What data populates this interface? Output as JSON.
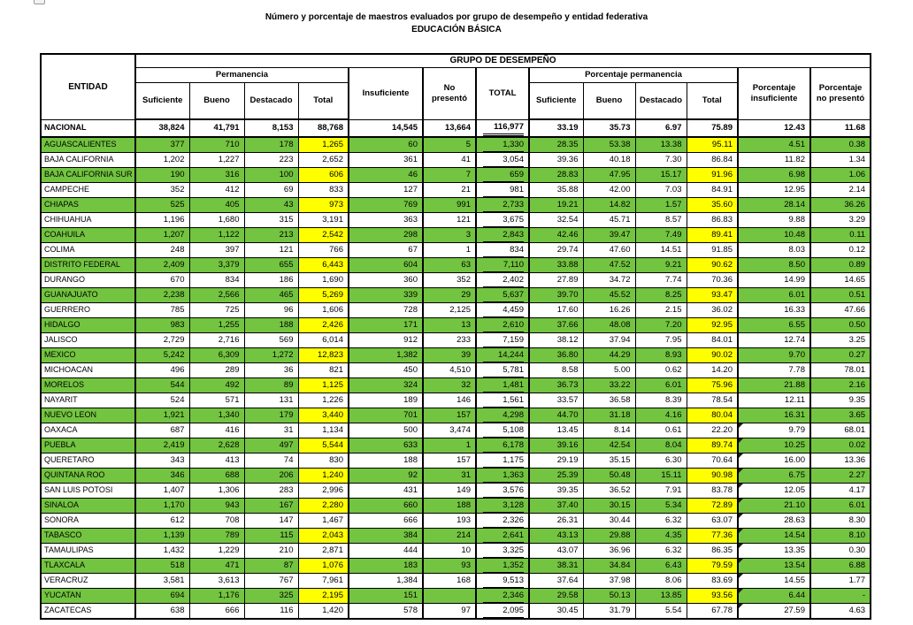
{
  "page": {
    "title": "Número y porcentaje de maestros evaluados por grupo de desempeño y entidad federativa",
    "subtitle": "EDUCACIÓN BÁSICA"
  },
  "colors": {
    "row_green": "#73C440",
    "cell_yellow": "#FFFF00"
  },
  "table": {
    "header": {
      "entidad": "ENTIDAD",
      "grupo_desempeno": "GRUPO DE DESEMPEÑO",
      "permanencia": "Permanencia",
      "porcentaje_permanencia": "Porcentaje permanencia",
      "suficiente": "Suficiente",
      "bueno": "Bueno",
      "destacado": "Destacado",
      "total": "Total",
      "insuficiente": "Insuficiente",
      "no_presento": "No presentó",
      "total_abs": "TOTAL",
      "pct_suficiente": "Suficiente",
      "pct_bueno": "Bueno",
      "pct_destacado": "Destacado",
      "pct_total": "Total",
      "porcentaje_insuficiente": "Porcentaje insuficiente",
      "porcentaje_no_presento": "Porcentaje no presentó"
    },
    "rows": [
      {
        "entidad": "NACIONAL",
        "green": false,
        "bold": true,
        "marker": false,
        "values": [
          "38,824",
          "41,791",
          "8,153",
          "88,768",
          "14,545",
          "13,664",
          "116,977",
          "33.19",
          "35.73",
          "6.97",
          "75.89",
          "12.43",
          "11.68"
        ]
      },
      {
        "entidad": "AGUASCALIENTES",
        "green": true,
        "bold": false,
        "marker": false,
        "values": [
          "377",
          "710",
          "178",
          "1,265",
          "60",
          "5",
          "1,330",
          "28.35",
          "53.38",
          "13.38",
          "95.11",
          "4.51",
          "0.38"
        ]
      },
      {
        "entidad": "BAJA CALIFORNIA",
        "green": false,
        "bold": false,
        "marker": false,
        "values": [
          "1,202",
          "1,227",
          "223",
          "2,652",
          "361",
          "41",
          "3,054",
          "39.36",
          "40.18",
          "7.30",
          "86.84",
          "11.82",
          "1.34"
        ]
      },
      {
        "entidad": "BAJA CALIFORNIA SUR",
        "green": true,
        "bold": false,
        "marker": false,
        "values": [
          "190",
          "316",
          "100",
          "606",
          "46",
          "7",
          "659",
          "28.83",
          "47.95",
          "15.17",
          "91.96",
          "6.98",
          "1.06"
        ]
      },
      {
        "entidad": "CAMPECHE",
        "green": false,
        "bold": false,
        "marker": false,
        "values": [
          "352",
          "412",
          "69",
          "833",
          "127",
          "21",
          "981",
          "35.88",
          "42.00",
          "7.03",
          "84.91",
          "12.95",
          "2.14"
        ]
      },
      {
        "entidad": "CHIAPAS",
        "green": true,
        "bold": false,
        "marker": false,
        "values": [
          "525",
          "405",
          "43",
          "973",
          "769",
          "991",
          "2,733",
          "19.21",
          "14.82",
          "1.57",
          "35.60",
          "28.14",
          "36.26"
        ]
      },
      {
        "entidad": "CHIHUAHUA",
        "green": false,
        "bold": false,
        "marker": false,
        "values": [
          "1,196",
          "1,680",
          "315",
          "3,191",
          "363",
          "121",
          "3,675",
          "32.54",
          "45.71",
          "8.57",
          "86.83",
          "9.88",
          "3.29"
        ]
      },
      {
        "entidad": "COAHUILA",
        "green": true,
        "bold": false,
        "marker": false,
        "values": [
          "1,207",
          "1,122",
          "213",
          "2,542",
          "298",
          "3",
          "2,843",
          "42.46",
          "39.47",
          "7.49",
          "89.41",
          "10.48",
          "0.11"
        ]
      },
      {
        "entidad": "COLIMA",
        "green": false,
        "bold": false,
        "marker": false,
        "values": [
          "248",
          "397",
          "121",
          "766",
          "67",
          "1",
          "834",
          "29.74",
          "47.60",
          "14.51",
          "91.85",
          "8.03",
          "0.12"
        ]
      },
      {
        "entidad": "DISTRITO FEDERAL",
        "green": true,
        "bold": false,
        "marker": false,
        "values": [
          "2,409",
          "3,379",
          "655",
          "6,443",
          "604",
          "63",
          "7,110",
          "33.88",
          "47.52",
          "9.21",
          "90.62",
          "8.50",
          "0.89"
        ]
      },
      {
        "entidad": "DURANGO",
        "green": false,
        "bold": false,
        "marker": false,
        "values": [
          "670",
          "834",
          "186",
          "1,690",
          "360",
          "352",
          "2,402",
          "27.89",
          "34.72",
          "7.74",
          "70.36",
          "14.99",
          "14.65"
        ]
      },
      {
        "entidad": "GUANAJUATO",
        "green": true,
        "bold": false,
        "marker": false,
        "values": [
          "2,238",
          "2,566",
          "465",
          "5,269",
          "339",
          "29",
          "5,637",
          "39.70",
          "45.52",
          "8.25",
          "93.47",
          "6.01",
          "0.51"
        ]
      },
      {
        "entidad": "GUERRERO",
        "green": false,
        "bold": false,
        "marker": false,
        "values": [
          "785",
          "725",
          "96",
          "1,606",
          "728",
          "2,125",
          "4,459",
          "17.60",
          "16.26",
          "2.15",
          "36.02",
          "16.33",
          "47.66"
        ]
      },
      {
        "entidad": "HIDALGO",
        "green": true,
        "bold": false,
        "marker": false,
        "values": [
          "983",
          "1,255",
          "188",
          "2,426",
          "171",
          "13",
          "2,610",
          "37.66",
          "48.08",
          "7.20",
          "92.95",
          "6.55",
          "0.50"
        ]
      },
      {
        "entidad": "JALISCO",
        "green": false,
        "bold": false,
        "marker": false,
        "values": [
          "2,729",
          "2,716",
          "569",
          "6,014",
          "912",
          "233",
          "7,159",
          "38.12",
          "37.94",
          "7.95",
          "84.01",
          "12.74",
          "3.25"
        ]
      },
      {
        "entidad": "MEXICO",
        "green": true,
        "bold": false,
        "marker": false,
        "values": [
          "5,242",
          "6,309",
          "1,272",
          "12,823",
          "1,382",
          "39",
          "14,244",
          "36.80",
          "44.29",
          "8.93",
          "90.02",
          "9.70",
          "0.27"
        ]
      },
      {
        "entidad": "MICHOACAN",
        "green": false,
        "bold": false,
        "marker": false,
        "values": [
          "496",
          "289",
          "36",
          "821",
          "450",
          "4,510",
          "5,781",
          "8.58",
          "5.00",
          "0.62",
          "14.20",
          "7.78",
          "78.01"
        ]
      },
      {
        "entidad": "MORELOS",
        "green": true,
        "bold": false,
        "marker": false,
        "values": [
          "544",
          "492",
          "89",
          "1,125",
          "324",
          "32",
          "1,481",
          "36.73",
          "33.22",
          "6.01",
          "75.96",
          "21.88",
          "2.16"
        ]
      },
      {
        "entidad": "NAYARIT",
        "green": false,
        "bold": false,
        "marker": false,
        "values": [
          "524",
          "571",
          "131",
          "1,226",
          "189",
          "146",
          "1,561",
          "33.57",
          "36.58",
          "8.39",
          "78.54",
          "12.11",
          "9.35"
        ]
      },
      {
        "entidad": "NUEVO LEON",
        "green": true,
        "bold": false,
        "marker": false,
        "values": [
          "1,921",
          "1,340",
          "179",
          "3,440",
          "701",
          "157",
          "4,298",
          "44.70",
          "31.18",
          "4.16",
          "80.04",
          "16.31",
          "3.65"
        ]
      },
      {
        "entidad": "OAXACA",
        "green": false,
        "bold": false,
        "marker": true,
        "values": [
          "687",
          "416",
          "31",
          "1,134",
          "500",
          "3,474",
          "5,108",
          "13.45",
          "8.14",
          "0.61",
          "22.20",
          "9.79",
          "68.01"
        ]
      },
      {
        "entidad": "PUEBLA",
        "green": true,
        "bold": false,
        "marker": true,
        "values": [
          "2,419",
          "2,628",
          "497",
          "5,544",
          "633",
          "1",
          "6,178",
          "39.16",
          "42.54",
          "8.04",
          "89.74",
          "10.25",
          "0.02"
        ]
      },
      {
        "entidad": "QUERETARO",
        "green": false,
        "bold": false,
        "marker": true,
        "values": [
          "343",
          "413",
          "74",
          "830",
          "188",
          "157",
          "1,175",
          "29.19",
          "35.15",
          "6.30",
          "70.64",
          "16.00",
          "13.36"
        ]
      },
      {
        "entidad": "QUINTANA ROO",
        "green": true,
        "bold": false,
        "marker": true,
        "values": [
          "346",
          "688",
          "206",
          "1,240",
          "92",
          "31",
          "1,363",
          "25.39",
          "50.48",
          "15.11",
          "90.98",
          "6.75",
          "2.27"
        ]
      },
      {
        "entidad": "SAN LUIS POTOSI",
        "green": false,
        "bold": false,
        "marker": true,
        "values": [
          "1,407",
          "1,306",
          "283",
          "2,996",
          "431",
          "149",
          "3,576",
          "39.35",
          "36.52",
          "7.91",
          "83.78",
          "12.05",
          "4.17"
        ]
      },
      {
        "entidad": "SINALOA",
        "green": true,
        "bold": false,
        "marker": true,
        "values": [
          "1,170",
          "943",
          "167",
          "2,280",
          "660",
          "188",
          "3,128",
          "37.40",
          "30.15",
          "5.34",
          "72.89",
          "21.10",
          "6.01"
        ]
      },
      {
        "entidad": "SONORA",
        "green": false,
        "bold": false,
        "marker": true,
        "values": [
          "612",
          "708",
          "147",
          "1,467",
          "666",
          "193",
          "2,326",
          "26.31",
          "30.44",
          "6.32",
          "63.07",
          "28.63",
          "8.30"
        ]
      },
      {
        "entidad": "TABASCO",
        "green": true,
        "bold": false,
        "marker": true,
        "values": [
          "1,139",
          "789",
          "115",
          "2,043",
          "384",
          "214",
          "2,641",
          "43.13",
          "29.88",
          "4.35",
          "77.36",
          "14.54",
          "8.10"
        ]
      },
      {
        "entidad": "TAMAULIPAS",
        "green": false,
        "bold": false,
        "marker": true,
        "values": [
          "1,432",
          "1,229",
          "210",
          "2,871",
          "444",
          "10",
          "3,325",
          "43.07",
          "36.96",
          "6.32",
          "86.35",
          "13.35",
          "0.30"
        ]
      },
      {
        "entidad": "TLAXCALA",
        "green": true,
        "bold": false,
        "marker": true,
        "values": [
          "518",
          "471",
          "87",
          "1,076",
          "183",
          "93",
          "1,352",
          "38.31",
          "34.84",
          "6.43",
          "79.59",
          "13.54",
          "6.88"
        ]
      },
      {
        "entidad": "VERACRUZ",
        "green": false,
        "bold": false,
        "marker": true,
        "values": [
          "3,581",
          "3,613",
          "767",
          "7,961",
          "1,384",
          "168",
          "9,513",
          "37.64",
          "37.98",
          "8.06",
          "83.69",
          "14.55",
          "1.77"
        ]
      },
      {
        "entidad": "YUCATAN",
        "green": true,
        "bold": false,
        "marker": true,
        "values": [
          "694",
          "1,176",
          "325",
          "2,195",
          "151",
          "",
          "2,346",
          "29.58",
          "50.13",
          "13.85",
          "93.56",
          "6.44",
          "-"
        ]
      },
      {
        "entidad": "ZACATECAS",
        "green": false,
        "bold": false,
        "marker": true,
        "values": [
          "638",
          "666",
          "116",
          "1,420",
          "578",
          "97",
          "2,095",
          "30.45",
          "31.79",
          "5.54",
          "67.78",
          "27.59",
          "4.63"
        ]
      }
    ]
  }
}
